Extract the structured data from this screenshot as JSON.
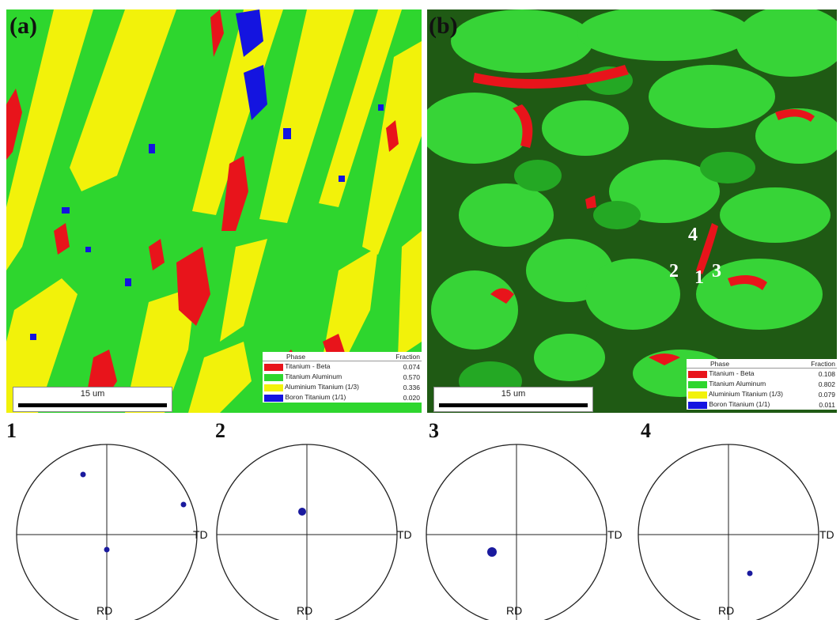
{
  "panels": {
    "a": {
      "label": "(a)",
      "scale_bar": "15 um",
      "legend": {
        "header_phase": "Phase",
        "header_fraction": "Fraction",
        "rows": [
          {
            "name": "Titanium - Beta",
            "fraction": "0.074",
            "color": "#e8141b"
          },
          {
            "name": "Titanium Aluminum",
            "fraction": "0.570",
            "color": "#2ed62e"
          },
          {
            "name": "Aluminium Titanium (1/3)",
            "fraction": "0.336",
            "color": "#f2f20a"
          },
          {
            "name": "Boron Titanium (1/1)",
            "fraction": "0.020",
            "color": "#1414e0"
          }
        ]
      }
    },
    "b": {
      "label": "(b)",
      "scale_bar": "15 um",
      "grain_labels": [
        "4",
        "2",
        "1",
        "3"
      ],
      "legend": {
        "header_phase": "Phase",
        "header_fraction": "Fraction",
        "rows": [
          {
            "name": "Titanium - Beta",
            "fraction": "0.108",
            "color": "#e8141b"
          },
          {
            "name": "Titanium Aluminum",
            "fraction": "0.802",
            "color": "#2ed62e"
          },
          {
            "name": "Aluminium Titanium (1/3)",
            "fraction": "0.079",
            "color": "#f2f20a"
          },
          {
            "name": "Boron Titanium (1/1)",
            "fraction": "0.011",
            "color": "#1414e0"
          }
        ]
      }
    }
  },
  "pole_figures": [
    {
      "number": "1",
      "td_label": "TD",
      "rd_label": "RD"
    },
    {
      "number": "2",
      "td_label": "TD",
      "rd_label": "RD"
    },
    {
      "number": "3",
      "td_label": "TD",
      "rd_label": "RD"
    },
    {
      "number": "4",
      "td_label": "TD",
      "rd_label": "RD"
    }
  ]
}
